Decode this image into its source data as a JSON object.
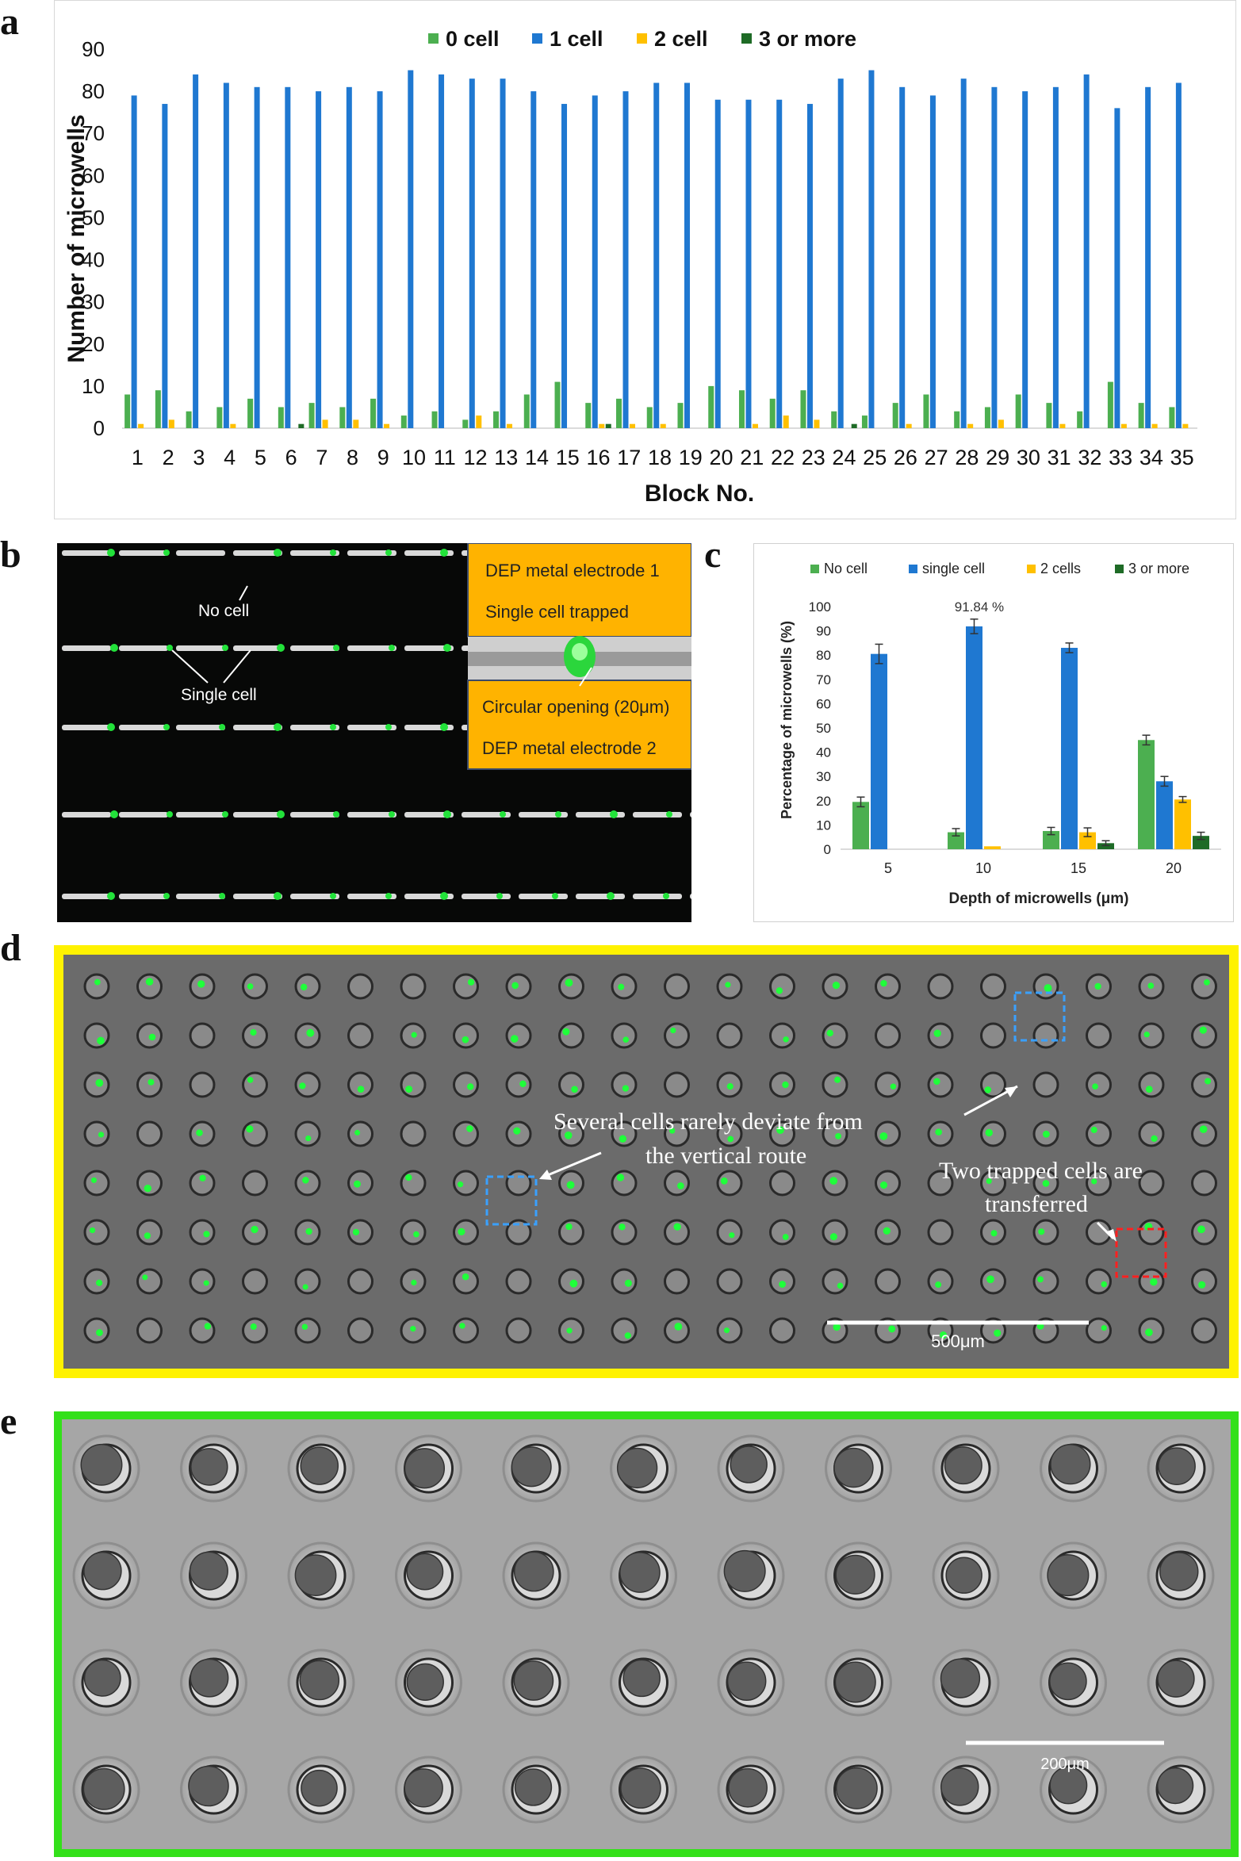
{
  "panels": {
    "a": "a",
    "b": "b",
    "c": "c",
    "d": "d",
    "e": "e"
  },
  "chart_data": [
    {
      "type": "bar",
      "xlabel": "Block No.",
      "ylabel": "Number of microwells",
      "ylim": [
        0,
        90
      ],
      "yticks": [
        0,
        10,
        20,
        30,
        40,
        50,
        60,
        70,
        80,
        90
      ],
      "grid": false,
      "legend": "top",
      "categories": [
        "1",
        "2",
        "3",
        "4",
        "5",
        "6",
        "7",
        "8",
        "9",
        "10",
        "11",
        "12",
        "13",
        "14",
        "15",
        "16",
        "17",
        "18",
        "19",
        "20",
        "21",
        "22",
        "23",
        "24",
        "25",
        "26",
        "27",
        "28",
        "29",
        "30",
        "31",
        "32",
        "33",
        "34",
        "35"
      ],
      "series": [
        {
          "name": "0 cell",
          "color": "#4CAF50",
          "values": [
            8,
            9,
            4,
            5,
            7,
            5,
            6,
            5,
            7,
            3,
            4,
            2,
            4,
            8,
            11,
            6,
            7,
            5,
            6,
            10,
            9,
            7,
            9,
            4,
            3,
            6,
            8,
            4,
            5,
            8,
            6,
            4,
            11,
            6,
            5
          ]
        },
        {
          "name": "1 cell",
          "color": "#1F78D1",
          "values": [
            79,
            77,
            84,
            82,
            81,
            81,
            80,
            81,
            80,
            85,
            84,
            83,
            83,
            80,
            77,
            79,
            80,
            82,
            82,
            78,
            78,
            78,
            77,
            83,
            85,
            81,
            79,
            83,
            81,
            80,
            81,
            84,
            76,
            81,
            82
          ]
        },
        {
          "name": "2 cell",
          "color": "#FFC000",
          "values": [
            1,
            2,
            0,
            1,
            0,
            0,
            2,
            2,
            1,
            0,
            0,
            3,
            1,
            0,
            0,
            1,
            1,
            1,
            0,
            0,
            1,
            3,
            2,
            0,
            0,
            1,
            0,
            1,
            2,
            0,
            1,
            0,
            1,
            1,
            1
          ]
        },
        {
          "name": "3 or more",
          "color": "#1E6B26",
          "values": [
            0,
            0,
            0,
            0,
            0,
            1,
            0,
            0,
            0,
            0,
            0,
            0,
            0,
            0,
            0,
            1,
            0,
            0,
            0,
            0,
            0,
            0,
            0,
            1,
            0,
            0,
            0,
            0,
            0,
            0,
            0,
            0,
            0,
            0,
            0
          ]
        }
      ]
    },
    {
      "type": "bar",
      "xlabel": "Depth of microwells (μm)",
      "ylabel": "Percentage of microwells (%)",
      "ylim": [
        0,
        100
      ],
      "yticks": [
        0,
        10,
        20,
        30,
        40,
        50,
        60,
        70,
        80,
        90,
        100
      ],
      "grid": false,
      "legend": "top",
      "categories": [
        "5",
        "10",
        "15",
        "20"
      ],
      "annotation": "91.84 %",
      "series": [
        {
          "name": "No cell",
          "color": "#4CAF50",
          "values": [
            19.5,
            7,
            7.5,
            45
          ],
          "errors": [
            2,
            1.5,
            1.5,
            2
          ]
        },
        {
          "name": "single cell",
          "color": "#1F78D1",
          "values": [
            80.5,
            91.84,
            83,
            28
          ],
          "errors": [
            4,
            3,
            2,
            2
          ]
        },
        {
          "name": "2 cells",
          "color": "#FFC000",
          "values": [
            0,
            1.2,
            7,
            20.5
          ],
          "errors": [
            0,
            0,
            1.8,
            1.2
          ]
        },
        {
          "name": "3 or more",
          "color": "#1E6B26",
          "values": [
            0,
            0,
            2.5,
            5.5
          ],
          "errors": [
            0,
            0,
            1,
            1.5
          ]
        }
      ]
    }
  ],
  "panel_b": {
    "label_no_cell": "No cell",
    "label_single_cell": "Single cell",
    "inset_top_1": "DEP metal electrode 1",
    "inset_top_2": "Single cell trapped",
    "inset_bottom_1": "Circular opening (20μm)",
    "inset_bottom_2": "DEP metal electrode 2",
    "box_color": "#FFB300"
  },
  "panel_d": {
    "annotation_1_line1": "Several cells rarely deviate from",
    "annotation_1_line2": "the vertical route",
    "annotation_2_line1": "Two trapped cells are",
    "annotation_2_line2": "transferred",
    "scale_bar": "500μm",
    "frame_color": "#FFF200"
  },
  "panel_e": {
    "scale_bar": "200μm",
    "frame_color": "#33E01A"
  }
}
